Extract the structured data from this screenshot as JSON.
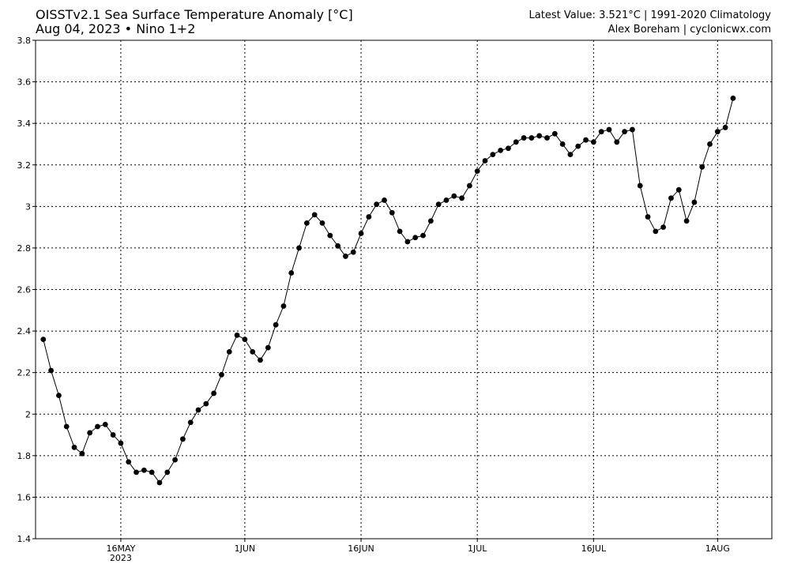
{
  "header": {
    "title_line1": "OISSTv2.1 Sea Surface Temperature Anomaly [°C]",
    "title_line2": "Aug 04, 2023 • Nino 1+2",
    "right_line1": "Latest Value: 3.521°C | 1991-2020 Climatology",
    "right_line2": "Alex Boreham | cyclonicwx.com"
  },
  "chart_data": {
    "type": "line",
    "title": "OISSTv2.1 Sea Surface Temperature Anomaly [°C]",
    "xlabel": "",
    "ylabel": "",
    "x_start": "2023-05-06",
    "x_step_days": 1,
    "xlim": [
      "2023-05-05",
      "2023-08-08"
    ],
    "ylim": [
      1.4,
      3.8
    ],
    "y_ticks": [
      1.4,
      1.6,
      1.8,
      2,
      2.2,
      2.4,
      2.6,
      2.8,
      3,
      3.2,
      3.4,
      3.6,
      3.8
    ],
    "x_ticks": [
      {
        "date": "2023-05-16",
        "label": "16MAY",
        "sublabel": "2023"
      },
      {
        "date": "2023-06-01",
        "label": "1JUN",
        "sublabel": ""
      },
      {
        "date": "2023-06-16",
        "label": "16JUN",
        "sublabel": ""
      },
      {
        "date": "2023-07-01",
        "label": "1JUL",
        "sublabel": ""
      },
      {
        "date": "2023-07-16",
        "label": "16JUL",
        "sublabel": ""
      },
      {
        "date": "2023-08-01",
        "label": "1AUG",
        "sublabel": ""
      }
    ],
    "grid": true,
    "series": [
      {
        "values": [
          2.36,
          2.21,
          2.09,
          1.94,
          1.84,
          1.81,
          1.91,
          1.94,
          1.95,
          1.9,
          1.86,
          1.77,
          1.72,
          1.73,
          1.72,
          1.67,
          1.72,
          1.78,
          1.88,
          1.96,
          2.02,
          2.05,
          2.1,
          2.19,
          2.3,
          2.38,
          2.36,
          2.3,
          2.26,
          2.32,
          2.43,
          2.52,
          2.68,
          2.8,
          2.92,
          2.96,
          2.92,
          2.86,
          2.81,
          2.76,
          2.78,
          2.87,
          2.95,
          3.01,
          3.03,
          2.97,
          2.88,
          2.83,
          2.85,
          2.86,
          2.93,
          3.01,
          3.03,
          3.05,
          3.04,
          3.1,
          3.17,
          3.22,
          3.25,
          3.27,
          3.28,
          3.31,
          3.33,
          3.33,
          3.34,
          3.33,
          3.35,
          3.3,
          3.25,
          3.29,
          3.32,
          3.31,
          3.36,
          3.37,
          3.31,
          3.36,
          3.37,
          3.1,
          2.95,
          2.88,
          2.9,
          3.04,
          3.08,
          2.93,
          3.02,
          3.19,
          3.3,
          3.36,
          3.38,
          3.521
        ]
      }
    ]
  }
}
